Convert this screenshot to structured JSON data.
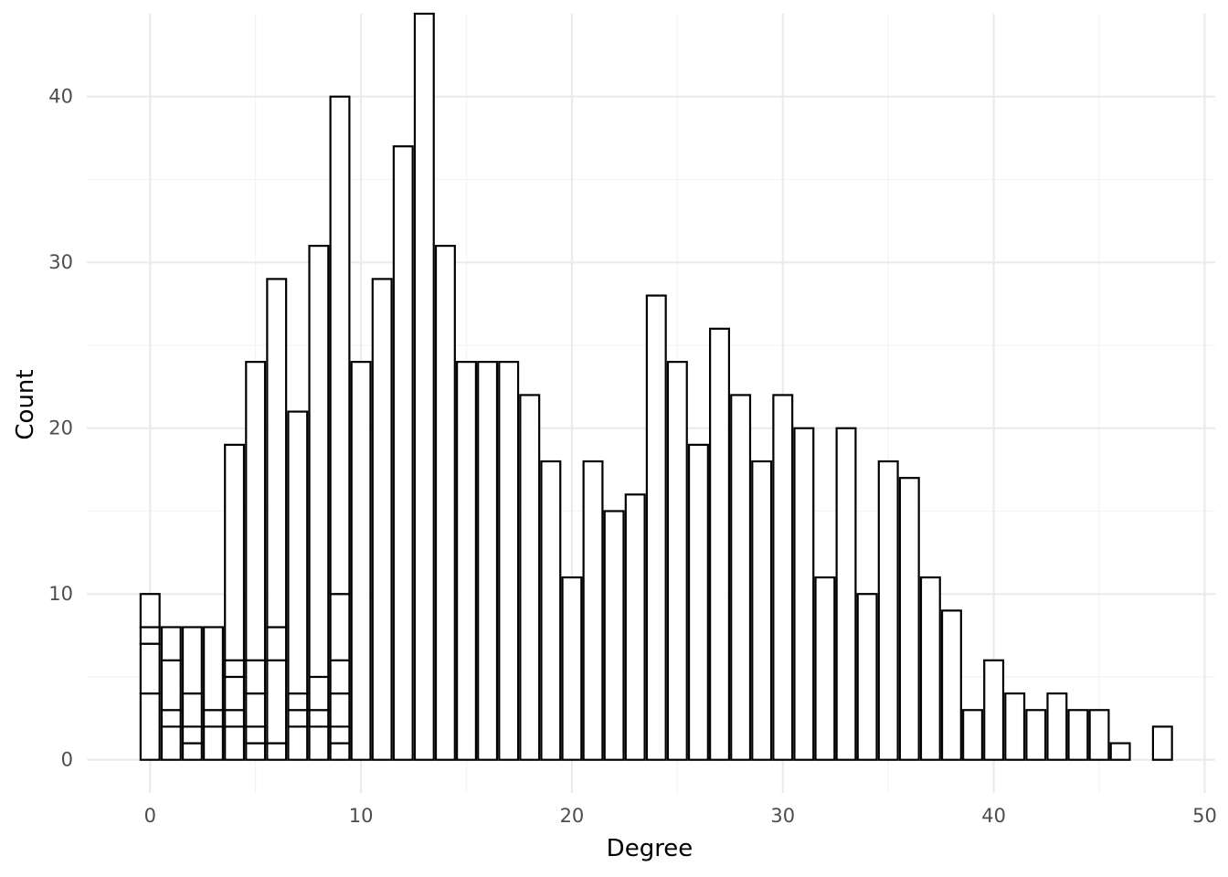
{
  "chart_data": {
    "type": "bar",
    "style": "histogram, stacked segments per bin, white fill with black outline",
    "xlabel": "Degree",
    "ylabel": "Count",
    "xlim": [
      -3,
      50.5
    ],
    "ylim": [
      -2,
      45
    ],
    "x_ticks": [
      0,
      10,
      20,
      30,
      40,
      50
    ],
    "y_ticks": [
      0,
      10,
      20,
      30,
      40
    ],
    "grid": true,
    "bar_width": 0.9,
    "bins": [
      {
        "x": 0,
        "stack": [
          4,
          3,
          1,
          2
        ]
      },
      {
        "x": 1,
        "stack": [
          2,
          1,
          3,
          2
        ]
      },
      {
        "x": 2,
        "stack": [
          1,
          1,
          2,
          4
        ]
      },
      {
        "x": 3,
        "stack": [
          2,
          1,
          5
        ]
      },
      {
        "x": 4,
        "stack": [
          2,
          1,
          2,
          1,
          13
        ]
      },
      {
        "x": 5,
        "stack": [
          1,
          1,
          2,
          2,
          18
        ]
      },
      {
        "x": 6,
        "stack": [
          1,
          5,
          2,
          21
        ]
      },
      {
        "x": 7,
        "stack": [
          2,
          1,
          1,
          17
        ]
      },
      {
        "x": 8,
        "stack": [
          2,
          1,
          2,
          26
        ]
      },
      {
        "x": 9,
        "stack": [
          1,
          1,
          2,
          2,
          4,
          30
        ]
      },
      {
        "x": 10,
        "stack": [
          24
        ]
      },
      {
        "x": 11,
        "stack": [
          29
        ]
      },
      {
        "x": 12,
        "stack": [
          37
        ]
      },
      {
        "x": 13,
        "stack": [
          45
        ]
      },
      {
        "x": 14,
        "stack": [
          31
        ]
      },
      {
        "x": 15,
        "stack": [
          24
        ]
      },
      {
        "x": 16,
        "stack": [
          24
        ]
      },
      {
        "x": 17,
        "stack": [
          24
        ]
      },
      {
        "x": 18,
        "stack": [
          22
        ]
      },
      {
        "x": 19,
        "stack": [
          18
        ]
      },
      {
        "x": 20,
        "stack": [
          11
        ]
      },
      {
        "x": 21,
        "stack": [
          18
        ]
      },
      {
        "x": 22,
        "stack": [
          15
        ]
      },
      {
        "x": 23,
        "stack": [
          16
        ]
      },
      {
        "x": 24,
        "stack": [
          28
        ]
      },
      {
        "x": 25,
        "stack": [
          24
        ]
      },
      {
        "x": 26,
        "stack": [
          19
        ]
      },
      {
        "x": 27,
        "stack": [
          26
        ]
      },
      {
        "x": 28,
        "stack": [
          22
        ]
      },
      {
        "x": 29,
        "stack": [
          18
        ]
      },
      {
        "x": 30,
        "stack": [
          22
        ]
      },
      {
        "x": 31,
        "stack": [
          20
        ]
      },
      {
        "x": 32,
        "stack": [
          11
        ]
      },
      {
        "x": 33,
        "stack": [
          20
        ]
      },
      {
        "x": 34,
        "stack": [
          10
        ]
      },
      {
        "x": 35,
        "stack": [
          18
        ]
      },
      {
        "x": 36,
        "stack": [
          17
        ]
      },
      {
        "x": 37,
        "stack": [
          11
        ]
      },
      {
        "x": 38,
        "stack": [
          9
        ]
      },
      {
        "x": 39,
        "stack": [
          3
        ]
      },
      {
        "x": 40,
        "stack": [
          6
        ]
      },
      {
        "x": 41,
        "stack": [
          4
        ]
      },
      {
        "x": 42,
        "stack": [
          3
        ]
      },
      {
        "x": 43,
        "stack": [
          4
        ]
      },
      {
        "x": 44,
        "stack": [
          3
        ]
      },
      {
        "x": 45,
        "stack": [
          3
        ]
      },
      {
        "x": 46,
        "stack": [
          1
        ]
      },
      {
        "x": 48,
        "stack": [
          2
        ]
      }
    ]
  },
  "colors": {
    "background": "#ffffff",
    "grid_major": "#ebebeb",
    "grid_minor": "#f4f4f4",
    "bar_fill": "#ffffff",
    "bar_stroke": "#000000",
    "tick_text": "#4d4d4d",
    "axis_title": "#000000"
  }
}
